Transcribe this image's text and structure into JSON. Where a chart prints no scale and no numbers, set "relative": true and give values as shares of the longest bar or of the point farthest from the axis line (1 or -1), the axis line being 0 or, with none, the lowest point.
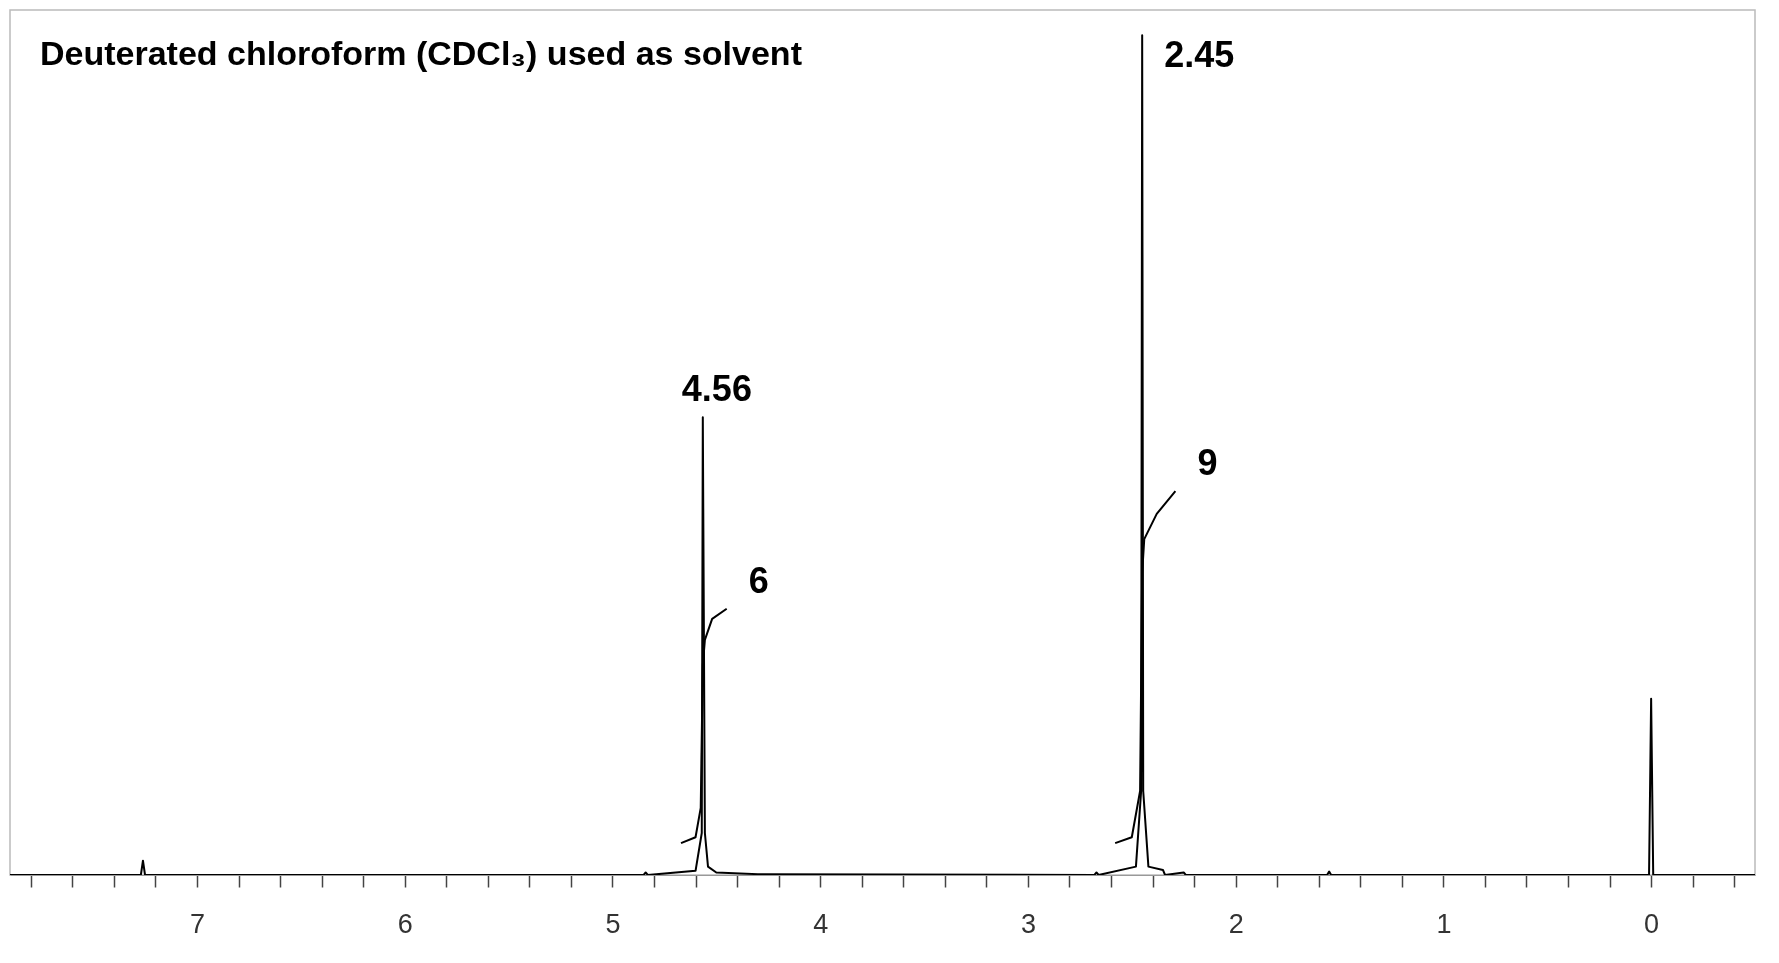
{
  "chart_data": {
    "type": "line",
    "title": "Deuterated chloroform (CDCl₃) used as solvent",
    "relative": true,
    "xlim": [
      7.9,
      -0.5
    ],
    "xticks": [
      {
        "value": 7.8,
        "label": null
      },
      {
        "value": 7.6,
        "label": null
      },
      {
        "value": 7.4,
        "label": null
      },
      {
        "value": 7.2,
        "label": null
      },
      7,
      {
        "value": 6.8,
        "label": null
      },
      {
        "value": 6.6,
        "label": null
      },
      {
        "value": 6.4,
        "label": null
      },
      {
        "value": 6.2,
        "label": null
      },
      6,
      {
        "value": 5.8,
        "label": null
      },
      {
        "value": 5.6,
        "label": null
      },
      {
        "value": 5.4,
        "label": null
      },
      {
        "value": 5.2,
        "label": null
      },
      5,
      {
        "value": 4.8,
        "label": null
      },
      {
        "value": 4.6,
        "label": null
      },
      {
        "value": 4.4,
        "label": null
      },
      {
        "value": 4.2,
        "label": null
      },
      4,
      {
        "value": 3.8,
        "label": null
      },
      {
        "value": 3.6,
        "label": null
      },
      {
        "value": 3.4,
        "label": null
      },
      {
        "value": 3.2,
        "label": null
      },
      3,
      {
        "value": 2.8,
        "label": null
      },
      {
        "value": 2.6,
        "label": null
      },
      {
        "value": 2.4,
        "label": null
      },
      {
        "value": 2.2,
        "label": null
      },
      2,
      {
        "value": 1.8,
        "label": null
      },
      {
        "value": 1.6,
        "label": null
      },
      {
        "value": 1.4,
        "label": null
      },
      {
        "value": 1.2,
        "label": null
      },
      1,
      {
        "value": 0.8,
        "label": null
      },
      {
        "value": 0.6,
        "label": null
      },
      {
        "value": 0.4,
        "label": null
      },
      {
        "value": 0.2,
        "label": null
      },
      0,
      {
        "value": -0.2,
        "label": null
      },
      {
        "value": -0.4,
        "label": null
      }
    ],
    "grid": false,
    "marker": "none",
    "line_style": "solid",
    "series": [
      {
        "color": "#000000",
        "x": [
          7.9,
          7.27,
          7.26,
          7.25,
          4.85,
          4.84,
          4.83,
          4.6,
          4.57,
          4.565,
          4.555,
          4.54,
          4.5,
          4.3,
          2.68,
          2.67,
          2.66,
          2.48,
          2.455,
          2.45,
          2.445,
          2.42,
          2.35,
          2.34,
          2.25,
          2.24,
          1.56,
          1.55,
          1.54,
          0.01,
          0,
          -0.01,
          -0.5
        ],
        "values": [
          0,
          0,
          0.017,
          0,
          0,
          0.003,
          0,
          0.005,
          0.05,
          0.545,
          0.05,
          0.01,
          0.003,
          0.001,
          0,
          0.003,
          0,
          0.01,
          0.1,
          1,
          0.1,
          0.01,
          0.006,
          0,
          0.003,
          0,
          0,
          0.004,
          0,
          0,
          0.21,
          0,
          0
        ]
      },
      {
        "color": "#000000",
        "x": [
          4.67,
          4.6,
          4.575,
          4.565,
          4.555,
          4.52,
          4.45
        ],
        "values": [
          0.038,
          0.045,
          0.08,
          0.25,
          0.28,
          0.305,
          0.317
        ]
      },
      {
        "color": "#000000",
        "x": [
          2.58,
          2.5,
          2.46,
          2.45,
          2.44,
          2.38,
          2.29
        ],
        "values": [
          0.038,
          0.045,
          0.1,
          0.36,
          0.4,
          0.43,
          0.457
        ]
      }
    ],
    "annotations": [
      {
        "text": "4.56",
        "x": 4.56,
        "y": 0.545
      },
      {
        "text": "2.45",
        "x": 2.45,
        "y": 1
      },
      {
        "text": "6",
        "x": 4.45,
        "y": 0.317
      },
      {
        "text": "9",
        "x": 2.29,
        "y": 0.457
      }
    ]
  }
}
